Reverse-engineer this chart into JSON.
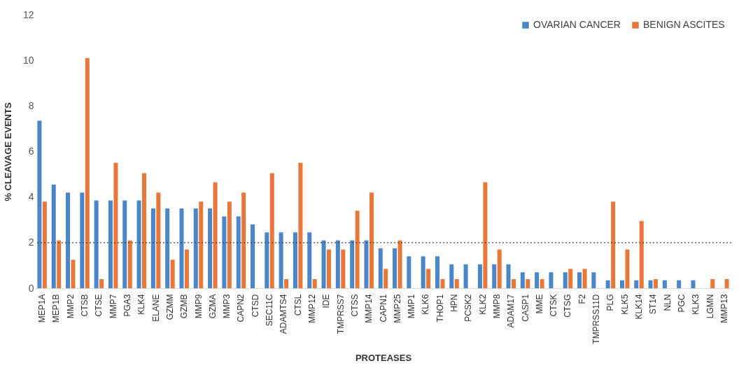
{
  "chart_data": {
    "type": "bar",
    "xlabel": "PROTEASES",
    "ylabel": "% CLEAVAGE EVENTS",
    "categories": [
      "MEP1A",
      "MEP1B",
      "MMP2",
      "CTSB",
      "CTSE",
      "MMP7",
      "PGA3",
      "KLK4",
      "ELANE",
      "GZMM",
      "GZMB",
      "MMP9",
      "GZMA",
      "MMP3",
      "CAPN2",
      "CTSD",
      "SEC11C",
      "ADAMTS4",
      "CTSL",
      "MMP12",
      "IDE",
      "TMPRSS7",
      "CTSS",
      "MMP14",
      "CAPN1",
      "MMP25",
      "MMP1",
      "KLK6",
      "THOP1",
      "HPN",
      "PCSK2",
      "KLK2",
      "MMP8",
      "ADAM17",
      "CASP1",
      "MME",
      "CTSK",
      "CTSG",
      "F2",
      "TMPRSS11D",
      "PLG",
      "KLK5",
      "KLK14",
      "ST14",
      "NLN",
      "PGC",
      "KLK3",
      "LGMN",
      "MMP13"
    ],
    "series": [
      {
        "name": "OVARIAN CANCER",
        "color": "#4a86c8",
        "values": [
          7.35,
          4.55,
          4.2,
          4.2,
          3.85,
          3.85,
          3.85,
          3.85,
          3.5,
          3.5,
          3.5,
          3.5,
          3.5,
          3.15,
          3.15,
          2.8,
          2.45,
          2.45,
          2.45,
          2.45,
          2.1,
          2.1,
          2.1,
          2.1,
          1.75,
          1.75,
          1.4,
          1.4,
          1.4,
          1.05,
          1.05,
          1.05,
          1.05,
          1.05,
          0.7,
          0.7,
          0.7,
          0.7,
          0.7,
          0.7,
          0.35,
          0.35,
          0.35,
          0.35,
          0.35,
          0.35,
          0.35,
          0,
          0
        ]
      },
      {
        "name": "BENIGN ASCITES",
        "color": "#e8783a",
        "values": [
          3.8,
          2.1,
          1.25,
          10.1,
          0.4,
          5.5,
          2.1,
          5.05,
          4.2,
          1.25,
          1.7,
          3.8,
          4.65,
          3.8,
          4.2,
          0,
          5.05,
          0.4,
          5.5,
          0.4,
          1.7,
          1.7,
          3.4,
          4.2,
          0.85,
          2.1,
          0,
          0.85,
          0.4,
          0.4,
          0,
          4.65,
          1.7,
          0.4,
          0.4,
          0.4,
          0,
          0.85,
          0.85,
          0,
          3.8,
          1.7,
          2.95,
          0.4,
          0,
          0,
          0,
          0.4,
          0.4
        ]
      }
    ],
    "ylim": [
      0,
      12
    ],
    "yticks": [
      0,
      2,
      4,
      6,
      8,
      10,
      12
    ],
    "ref_lines": [
      {
        "axis": "y",
        "value": 2,
        "color": "#404040",
        "line_style": "dotted"
      }
    ],
    "legend": "top right"
  }
}
